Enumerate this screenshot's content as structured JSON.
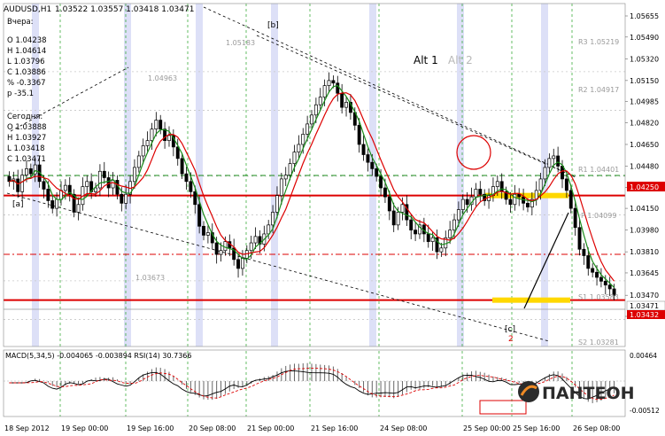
{
  "header": {
    "symbol": "AUDUSD,H1",
    "ohlc": "1.03522 1.03557 1.03418 1.03471"
  },
  "stats": {
    "yesterday_title": "Вчера:",
    "yesterday": [
      "O 1.04238",
      "H 1.04614",
      "L 1.03796",
      "C 1.03886",
      "% -0.3367",
      "p -35.1"
    ],
    "today_title": "Сегодня:",
    "today": [
      "O 1.03888",
      "H 1.03927",
      "L 1.03418",
      "C 1.03471"
    ]
  },
  "wave_labels": [
    "[a]",
    "[b]",
    "[c]",
    "2"
  ],
  "alt_labels": [
    "Alt 1",
    "Alt 2"
  ],
  "price_tags": [
    "1.04963",
    "1.05183",
    "1.03673"
  ],
  "pivots": [
    {
      "label": "R3 1.05219",
      "value": 1.05219
    },
    {
      "label": "R2 1.04917",
      "value": 1.04917
    },
    {
      "label": "R1 1.04401",
      "value": 1.04401
    },
    {
      "label": "P 1.04099",
      "value": 1.04099
    },
    {
      "label": "S1 1.03583",
      "value": 1.03583
    },
    {
      "label": "S2 1.03281",
      "value": 1.03281
    }
  ],
  "levels": [
    {
      "label": "1.04250",
      "value": 1.0425
    },
    {
      "label": "1.03432",
      "value": 1.03432
    }
  ],
  "current_price": "1.03471",
  "macd_label": "MACD(5,34,5) -0.004065 -0.003894 RSI(14) 30.7366",
  "logo_text": "ПАНТЕОН",
  "colors": {
    "bull": "#1a9c1a",
    "bear": "#000000",
    "red": "#dd0000",
    "green": "#1a8c1a",
    "yellow": "#ffd800"
  },
  "chart_data": {
    "type": "candlestick",
    "title": "AUDUSD,H1",
    "y_ticks": [
      1.05655,
      1.0549,
      1.0532,
      1.0515,
      1.04985,
      1.0482,
      1.0465,
      1.0448,
      1.04315,
      1.0415,
      1.0398,
      1.0381,
      1.03645,
      1.0347,
      1.03305
    ],
    "y_tick_labels": [
      "1.05655",
      "1.05490",
      "1.05320",
      "1.05150",
      "1.04985",
      "1.04820",
      "1.04650",
      "1.04480",
      "1.04315",
      "1.04150",
      "1.03980",
      "1.03810",
      "1.03645",
      "1.03470",
      "1.03305"
    ],
    "ylim": [
      1.0321,
      1.057
    ],
    "x_labels": [
      "18 Sep 2012",
      "19 Sep 00:00",
      "19 Sep 16:00",
      "20 Sep 08:00",
      "21 Sep 00:00",
      "21 Sep 16:00",
      "24 Sep 08:00",
      "25 Sep 00:00",
      "25 Sep 16:00",
      "26 Sep 08:00"
    ],
    "closes": [
      1.0436,
      1.0438,
      1.0428,
      1.0441,
      1.0446,
      1.0442,
      1.0449,
      1.0436,
      1.043,
      1.0421,
      1.0415,
      1.0422,
      1.0429,
      1.0433,
      1.0426,
      1.0412,
      1.0418,
      1.0432,
      1.0436,
      1.0428,
      1.0431,
      1.0444,
      1.0439,
      1.0431,
      1.0437,
      1.0426,
      1.0419,
      1.0426,
      1.0436,
      1.0447,
      1.0456,
      1.0464,
      1.0468,
      1.0477,
      1.0484,
      1.0477,
      1.0468,
      1.0472,
      1.0463,
      1.0454,
      1.0442,
      1.0436,
      1.0428,
      1.0418,
      1.0401,
      1.0394,
      1.0396,
      1.0388,
      1.0379,
      1.0382,
      1.0389,
      1.0384,
      1.0375,
      1.0368,
      1.0376,
      1.0382,
      1.0388,
      1.0393,
      1.0387,
      1.0395,
      1.0402,
      1.0412,
      1.0425,
      1.0438,
      1.0441,
      1.045,
      1.0459,
      1.0465,
      1.0473,
      1.0481,
      1.0488,
      1.0496,
      1.0502,
      1.0511,
      1.0515,
      1.0513,
      1.0505,
      1.0494,
      1.0498,
      1.049,
      1.048,
      1.0465,
      1.0457,
      1.0451,
      1.0446,
      1.044,
      1.0431,
      1.0424,
      1.0413,
      1.0402,
      1.0412,
      1.0418,
      1.0406,
      1.0398,
      1.0395,
      1.0402,
      1.0395,
      1.0389,
      1.0392,
      1.0381,
      1.0384,
      1.0392,
      1.0398,
      1.0406,
      1.0414,
      1.0422,
      1.0418,
      1.0424,
      1.043,
      1.0426,
      1.0421,
      1.0425,
      1.0432,
      1.0436,
      1.0428,
      1.0422,
      1.0418,
      1.0426,
      1.0424,
      1.0419,
      1.0416,
      1.0422,
      1.0429,
      1.0438,
      1.0447,
      1.0454,
      1.0456,
      1.0448,
      1.0438,
      1.0429,
      1.0415,
      1.04,
      1.0383,
      1.0378,
      1.0368,
      1.0365,
      1.0361,
      1.0358,
      1.0355,
      1.0352,
      1.0347
    ]
  }
}
